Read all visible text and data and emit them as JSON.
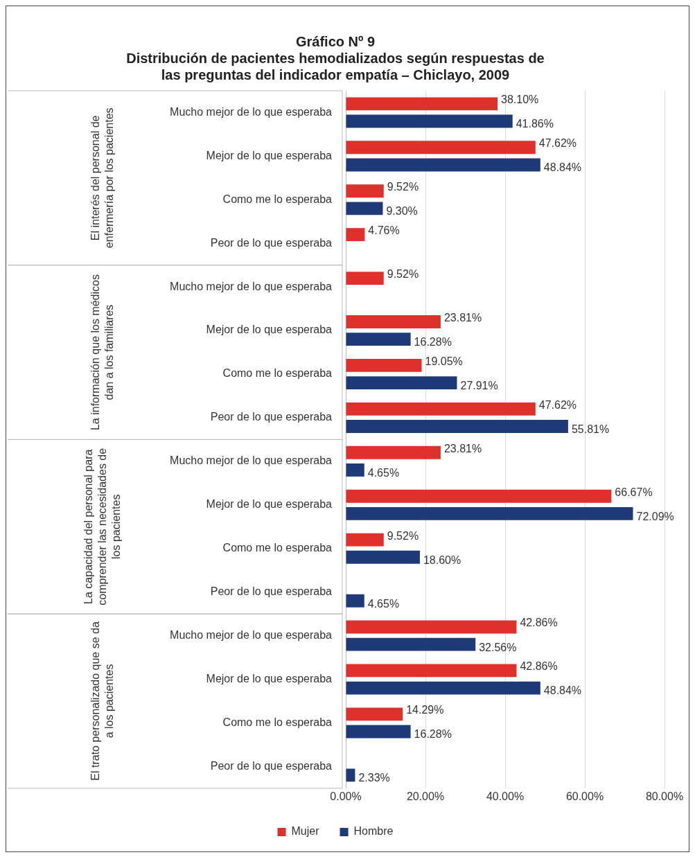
{
  "chart_data": {
    "type": "bar",
    "orientation": "horizontal",
    "title": "Gráfico Nº 9\nDistribución de pacientes hemodializados según respuestas de\nlas preguntas del indicador empatía – Chiclayo, 2009",
    "categories": [
      "Mucho mejor de lo que esperaba",
      "Mejor de lo que esperaba",
      "Como me lo esperaba",
      "Peor de lo que esperaba",
      "Mucho mejor de lo que esperaba",
      "Mejor de lo que esperaba",
      "Como me lo esperaba",
      "Peor de lo que esperaba",
      "Mucho mejor de lo que esperaba",
      "Mejor de lo que esperaba",
      "Como me lo esperaba",
      "Peor de lo que esperaba",
      "Mucho mejor de lo que esperaba",
      "Mejor de lo que esperaba",
      "Como me lo esperaba",
      "Peor de lo que esperaba"
    ],
    "annotations": [
      "El interés del personal de enfermería por los pacientes",
      "La información que los médicos dan a los familiares",
      "La capacidad del personal para comprender las necesidades de los pacientes",
      "El trato personalizado que se da a los pacientes"
    ],
    "series": [
      {
        "name": "Mujer",
        "color": "#e0302c",
        "values": [
          38.1,
          47.62,
          9.52,
          4.76,
          9.52,
          23.81,
          19.05,
          47.62,
          23.81,
          66.67,
          9.52,
          null,
          42.86,
          42.86,
          14.29,
          null
        ],
        "value_labels": [
          "38.10%",
          "47.62%",
          "9.52%",
          "4.76%",
          "9.52%",
          "23.81%",
          "19.05%",
          "47.62%",
          "23.81%",
          "66.67%",
          "9.52%",
          null,
          "42.86%",
          "42.86%",
          "14.29%",
          null
        ]
      },
      {
        "name": "Hombre",
        "color": "#1f3a78",
        "values": [
          41.86,
          48.84,
          9.3,
          null,
          null,
          16.28,
          27.91,
          55.81,
          4.65,
          72.09,
          18.6,
          4.65,
          32.56,
          48.84,
          16.28,
          2.33
        ],
        "value_labels": [
          "41.86%",
          "48.84%",
          "9.30%",
          null,
          null,
          "16.28%",
          "27.91%",
          "55.81%",
          "4.65%",
          "72.09%",
          "18.60%",
          "4.65%",
          "32.56%",
          "48.84%",
          "16.28%",
          "2.33%"
        ]
      }
    ],
    "xlim": [
      0,
      80
    ],
    "xticks": [
      {
        "value": 0,
        "label": "0.00%"
      },
      {
        "value": 20,
        "label": "20.00%"
      },
      {
        "value": 40,
        "label": "40.00%"
      },
      {
        "value": 60,
        "label": "60.00%"
      },
      {
        "value": 80,
        "label": "80.00%"
      }
    ],
    "grid": "x",
    "legend": "bottom"
  }
}
